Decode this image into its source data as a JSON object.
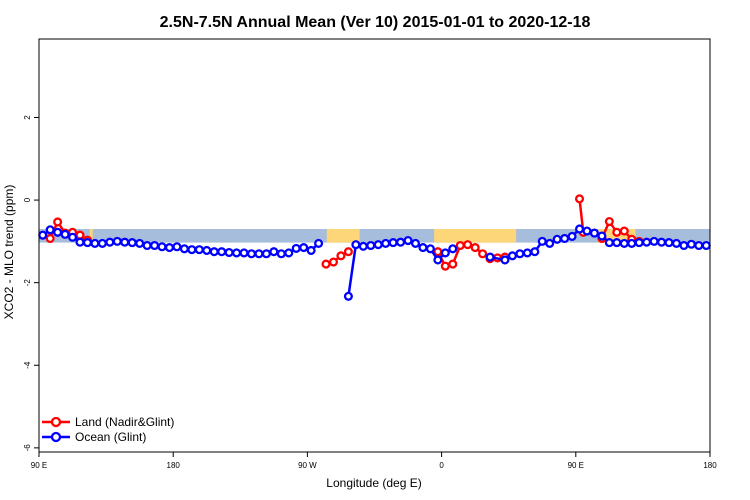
{
  "chart_data": {
    "type": "line",
    "title": "2.5N-7.5N Annual Mean (Ver 10)   2015-01-01 to 2020-12-18",
    "xlabel": "Longitude (deg E)",
    "ylabel": "XCO2 - MLO trend (ppm)",
    "x_ticks": [
      {
        "value": 90,
        "label": "90 E"
      },
      {
        "value": 180,
        "label": "180"
      },
      {
        "value": 270,
        "label": "90 W"
      },
      {
        "value": 360,
        "label": "0"
      },
      {
        "value": 450,
        "label": "90 E"
      },
      {
        "value": 540,
        "label": "180"
      }
    ],
    "y_ticks": [
      {
        "value": 2,
        "label": "2"
      },
      {
        "value": 0,
        "label": "0"
      },
      {
        "value": -2,
        "label": "-2"
      },
      {
        "value": -4,
        "label": "-4"
      },
      {
        "value": -6,
        "label": "-6"
      }
    ],
    "xlim": [
      90,
      540
    ],
    "ylim": [
      -6.1,
      3.9
    ],
    "grid": false,
    "legend_position": "bottom-left",
    "land_mask": {
      "baseline": -0.7,
      "ocean_color": "#a6bddb",
      "land_color": "#fdd67a",
      "land_ranges": [
        [
          98,
          100
        ],
        [
          124,
          126
        ],
        [
          283,
          305
        ],
        [
          355,
          410
        ],
        [
          465,
          490
        ]
      ]
    },
    "series": [
      {
        "name": "Land (Nadir&Glint)",
        "color": "#ff0000",
        "segments": [
          [
            [
              97.5,
              -0.93
            ],
            [
              102.5,
              -0.53
            ],
            [
              107.5,
              -0.8
            ],
            [
              112.5,
              -0.78
            ],
            [
              117.5,
              -0.85
            ]
          ],
          [
            [
              117.5,
              -0.85
            ],
            [
              122.5,
              -0.97
            ]
          ],
          [
            [
              282.5,
              -1.55
            ],
            [
              287.5,
              -1.5
            ],
            [
              292.5,
              -1.35
            ],
            [
              297.5,
              -1.25
            ]
          ],
          [
            [
              357.5,
              -1.25
            ],
            [
              362.5,
              -1.6
            ],
            [
              367.5,
              -1.55
            ],
            [
              372.5,
              -1.1
            ],
            [
              377.5,
              -1.08
            ],
            [
              382.5,
              -1.15
            ],
            [
              387.5,
              -1.3
            ],
            [
              392.5,
              -1.42
            ],
            [
              397.5,
              -1.4
            ],
            [
              402.5,
              -1.38
            ]
          ],
          [
            [
              452.5,
              0.03
            ],
            [
              455.0,
              -0.78
            ]
          ],
          [
            [
              467.5,
              -0.93
            ],
            [
              472.5,
              -0.52
            ],
            [
              477.5,
              -0.78
            ],
            [
              482.5,
              -0.75
            ],
            [
              487.5,
              -0.95
            ],
            [
              492.5,
              -1.0
            ]
          ]
        ]
      },
      {
        "name": "Ocean (Glint)",
        "color": "#0000ff",
        "segments": [
          [
            [
              92.5,
              -0.85
            ],
            [
              97.5,
              -0.72
            ],
            [
              102.5,
              -0.78
            ],
            [
              107.5,
              -0.83
            ],
            [
              112.5,
              -0.9
            ],
            [
              117.5,
              -1.02
            ],
            [
              122.5,
              -1.03
            ],
            [
              127.5,
              -1.05
            ],
            [
              132.5,
              -1.05
            ],
            [
              137.5,
              -1.02
            ],
            [
              142.5,
              -1.0
            ],
            [
              147.5,
              -1.02
            ],
            [
              152.5,
              -1.03
            ],
            [
              157.5,
              -1.05
            ],
            [
              162.5,
              -1.1
            ],
            [
              167.5,
              -1.1
            ],
            [
              172.5,
              -1.13
            ],
            [
              177.5,
              -1.15
            ],
            [
              182.5,
              -1.13
            ],
            [
              187.5,
              -1.18
            ],
            [
              192.5,
              -1.2
            ],
            [
              197.5,
              -1.2
            ],
            [
              202.5,
              -1.22
            ],
            [
              207.5,
              -1.25
            ],
            [
              212.5,
              -1.25
            ],
            [
              217.5,
              -1.27
            ],
            [
              222.5,
              -1.28
            ],
            [
              227.5,
              -1.28
            ],
            [
              232.5,
              -1.3
            ],
            [
              237.5,
              -1.3
            ],
            [
              242.5,
              -1.3
            ],
            [
              247.5,
              -1.25
            ],
            [
              252.5,
              -1.3
            ],
            [
              257.5,
              -1.28
            ],
            [
              262.5,
              -1.17
            ],
            [
              267.5,
              -1.15
            ],
            [
              272.5,
              -1.22
            ],
            [
              277.5,
              -1.05
            ]
          ],
          [
            [
              297.5,
              -2.33
            ],
            [
              302.5,
              -1.08
            ],
            [
              307.5,
              -1.12
            ],
            [
              312.5,
              -1.1
            ],
            [
              317.5,
              -1.08
            ],
            [
              322.5,
              -1.05
            ],
            [
              327.5,
              -1.03
            ],
            [
              332.5,
              -1.02
            ],
            [
              337.5,
              -0.98
            ],
            [
              342.5,
              -1.05
            ],
            [
              347.5,
              -1.15
            ],
            [
              352.5,
              -1.18
            ],
            [
              357.5,
              -1.45
            ],
            [
              362.5,
              -1.28
            ],
            [
              367.5,
              -1.18
            ]
          ],
          [
            [
              392.5,
              -1.38
            ],
            [
              402.5,
              -1.45
            ],
            [
              407.5,
              -1.35
            ],
            [
              412.5,
              -1.3
            ],
            [
              417.5,
              -1.28
            ],
            [
              422.5,
              -1.25
            ],
            [
              427.5,
              -1.0
            ],
            [
              432.5,
              -1.05
            ],
            [
              437.5,
              -0.95
            ],
            [
              442.5,
              -0.93
            ],
            [
              447.5,
              -0.88
            ],
            [
              452.5,
              -0.7
            ],
            [
              457.5,
              -0.75
            ],
            [
              462.5,
              -0.8
            ],
            [
              467.5,
              -0.87
            ],
            [
              472.5,
              -1.03
            ],
            [
              477.5,
              -1.03
            ],
            [
              482.5,
              -1.05
            ],
            [
              487.5,
              -1.05
            ],
            [
              492.5,
              -1.03
            ],
            [
              497.5,
              -1.02
            ],
            [
              502.5,
              -1.0
            ],
            [
              507.5,
              -1.02
            ],
            [
              512.5,
              -1.03
            ],
            [
              517.5,
              -1.05
            ],
            [
              522.5,
              -1.1
            ],
            [
              527.5,
              -1.07
            ],
            [
              532.5,
              -1.1
            ],
            [
              537.5,
              -1.1
            ]
          ]
        ]
      }
    ]
  }
}
